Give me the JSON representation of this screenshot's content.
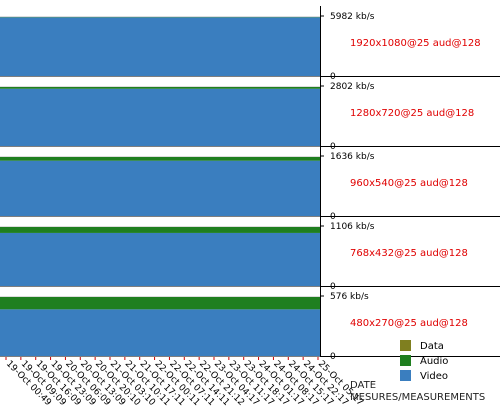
{
  "chart_data": {
    "type": "area",
    "xlabel": "DATE",
    "xlabel2": "MESURES/MEASUREMENTS",
    "x": [
      "19-Oct 00:49",
      "19-Oct 09:09",
      "19-Oct 16:09",
      "19-Oct 23:09",
      "20-Oct 06:09",
      "20-Oct 13:09",
      "20-Oct 20:10",
      "21-Oct 03:10",
      "21-Oct 10:11",
      "21-Oct 17:11",
      "22-Oct 00:11",
      "22-Oct 07:11",
      "22-Oct 14:11",
      "22-Oct 21:12",
      "23-Oct 04:17",
      "23-Oct 11:17",
      "23-Oct 18:17",
      "24-Oct 01:17",
      "24-Oct 08:17",
      "24-Oct 15:17",
      "24-Oct 22:17",
      "25-Oct 05:17"
    ],
    "legend": [
      {
        "name": "Data",
        "color": "#7f7f1f"
      },
      {
        "name": "Audio",
        "color": "#1f7f1f"
      },
      {
        "name": "Video",
        "color": "#3a7ebf"
      }
    ],
    "panels": [
      {
        "label": "1920x1080@25 aud@128",
        "ymax": 5982,
        "ymax_label": "5982 kb/s",
        "ymin_label": "0",
        "values": {
          "Data": 0,
          "Audio": 128,
          "Video": 5854
        }
      },
      {
        "label": "1280x720@25 aud@128",
        "ymax": 2802,
        "ymax_label": "2802 kb/s",
        "ymin_label": "0",
        "values": {
          "Data": 0,
          "Audio": 128,
          "Video": 2674
        }
      },
      {
        "label": "960x540@25 aud@128",
        "ymax": 1636,
        "ymax_label": "1636 kb/s",
        "ymin_label": "0",
        "values": {
          "Data": 0,
          "Audio": 128,
          "Video": 1508
        }
      },
      {
        "label": "768x432@25 aud@128",
        "ymax": 1106,
        "ymax_label": "1106 kb/s",
        "ymin_label": "0",
        "values": {
          "Data": 0,
          "Audio": 128,
          "Video": 978
        }
      },
      {
        "label": "480x270@25 aud@128",
        "ymax": 576,
        "ymax_label": "576 kb/s",
        "ymin_label": "0",
        "values": {
          "Data": 0,
          "Audio": 128,
          "Video": 448
        }
      }
    ]
  }
}
